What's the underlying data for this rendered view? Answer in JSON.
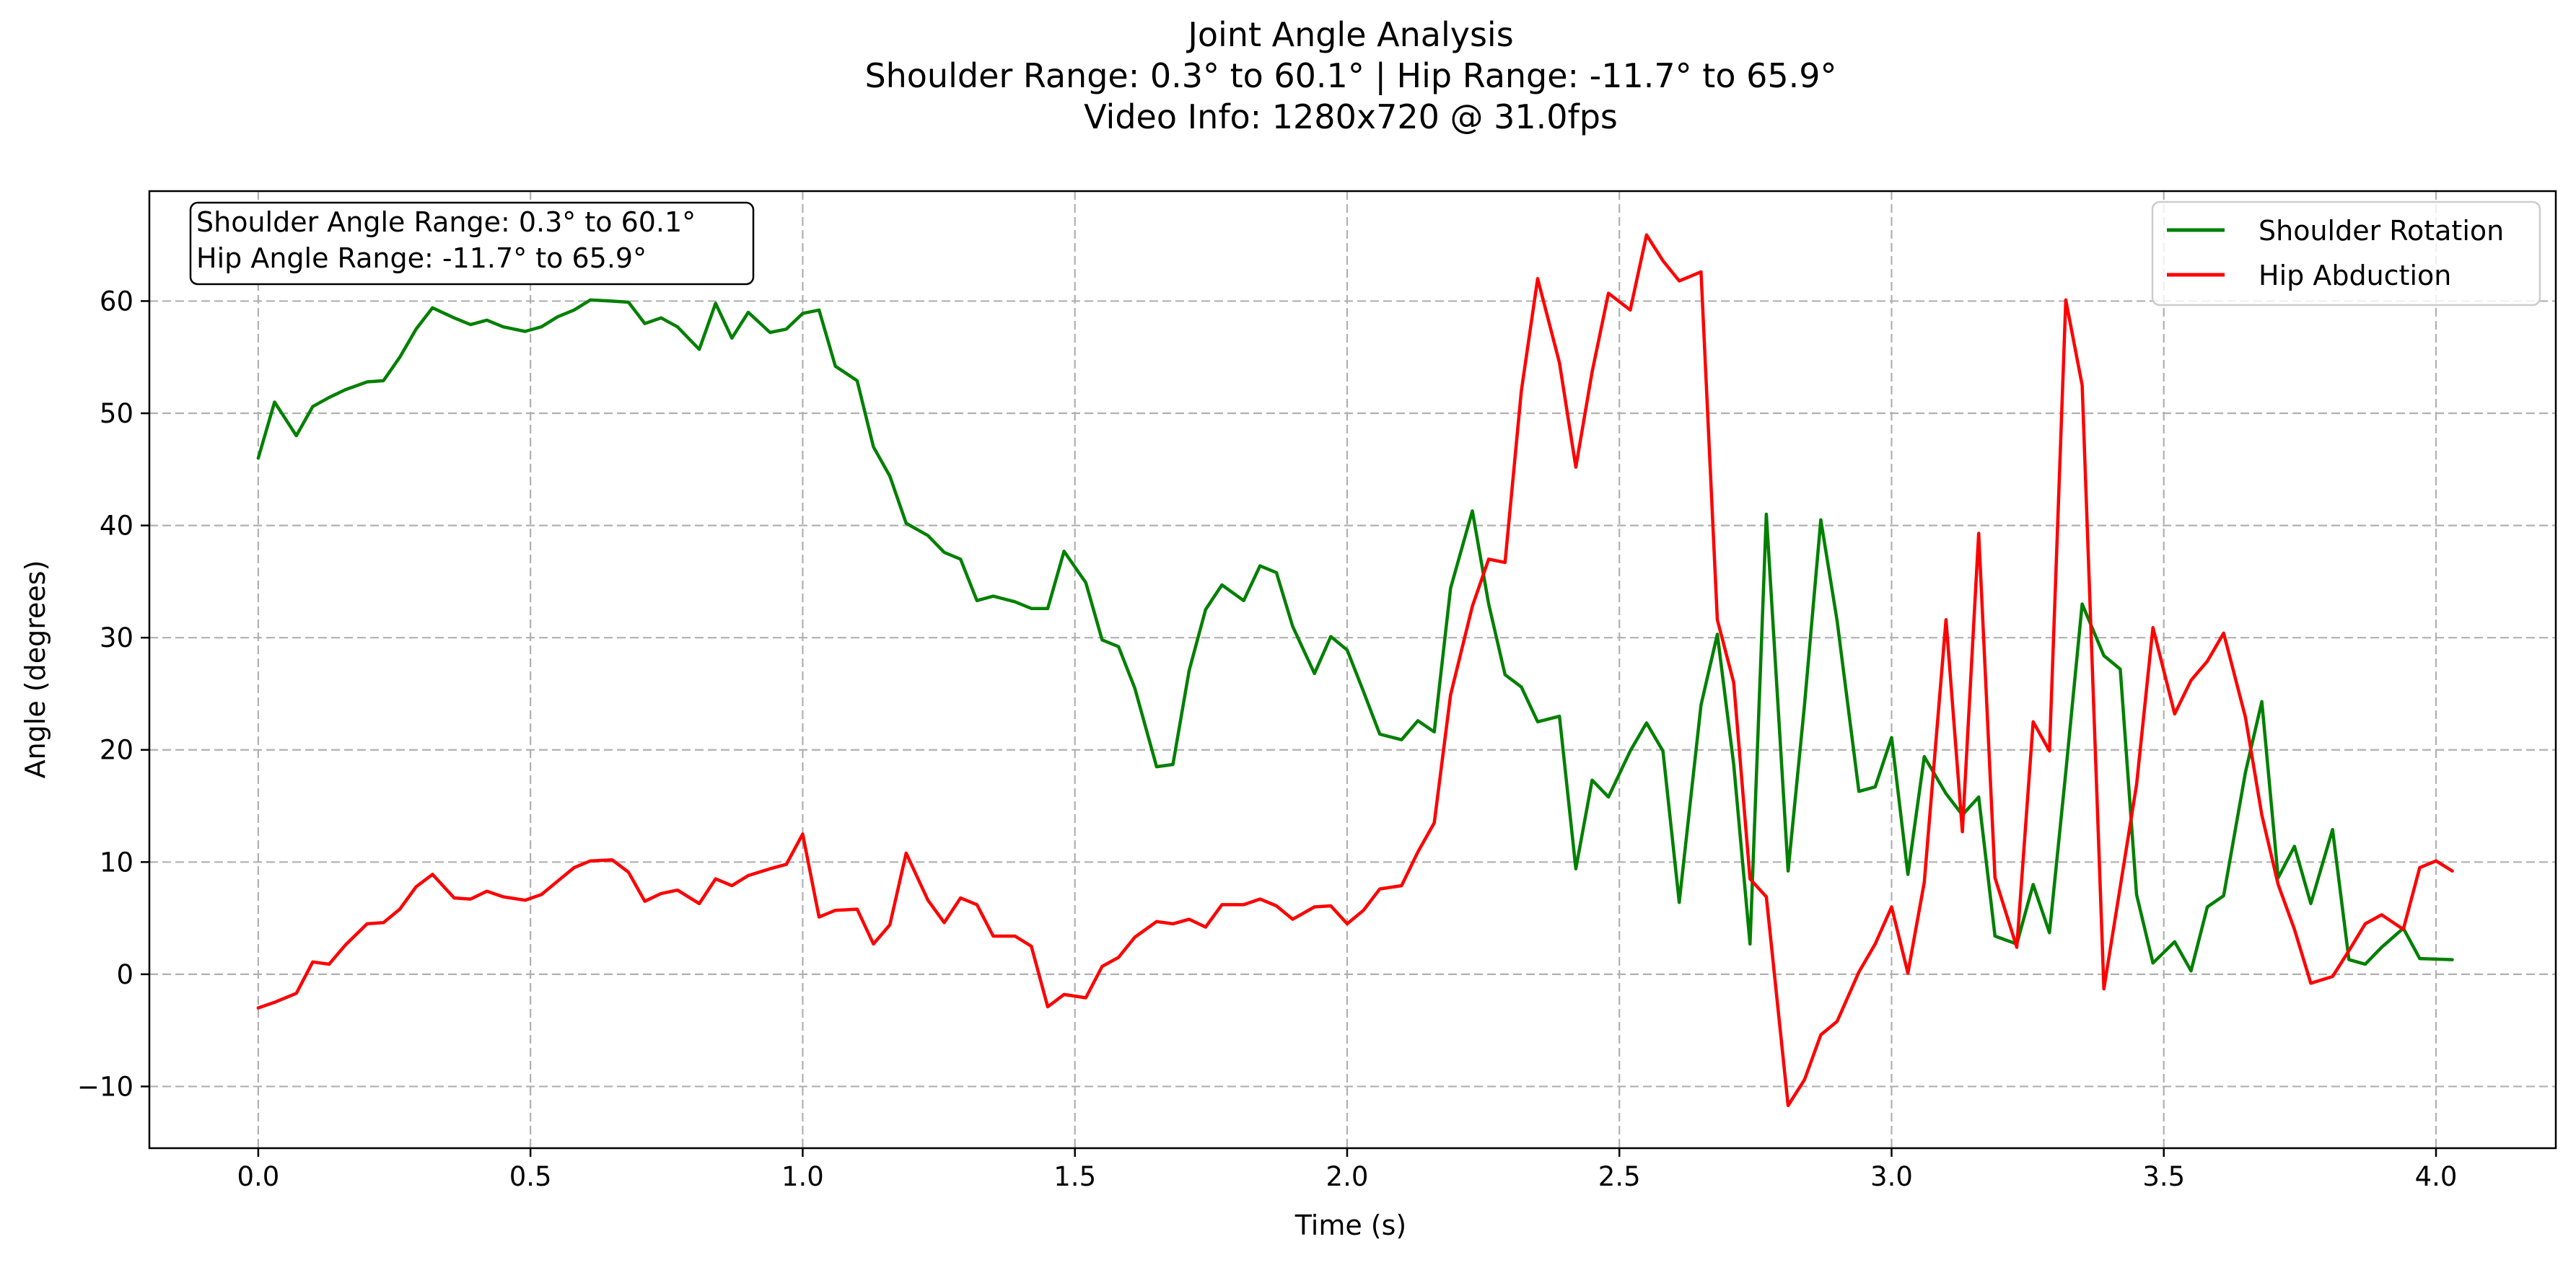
{
  "chart_data": {
    "type": "line",
    "title_lines": [
      "Joint Angle Analysis",
      "Shoulder Range: 0.3° to 60.1° | Hip Range: -11.7° to 65.9°",
      "Video Info: 1280x720 @ 31.0fps"
    ],
    "xlabel": "Time (s)",
    "ylabel": "Angle (degrees)",
    "xlim": [
      -0.2,
      4.22
    ],
    "ylim": [
      -15.5,
      69.8
    ],
    "xticks": [
      0.0,
      0.5,
      1.0,
      1.5,
      2.0,
      2.5,
      3.0,
      3.5,
      4.0
    ],
    "xtick_labels": [
      "0.0",
      "0.5",
      "1.0",
      "1.5",
      "2.0",
      "2.5",
      "3.0",
      "3.5",
      "4.0"
    ],
    "yticks": [
      -10,
      0,
      10,
      20,
      30,
      40,
      50,
      60
    ],
    "ytick_labels": [
      "−10",
      "0",
      "10",
      "20",
      "30",
      "40",
      "50",
      "60"
    ],
    "grid": true,
    "legend_position": "top-right",
    "annotation_lines": [
      "Shoulder Angle Range: 0.3° to 60.1°",
      "Hip Angle Range: -11.7° to 65.9°"
    ],
    "series": [
      {
        "name": "Shoulder Rotation",
        "color": "#008000",
        "points": [
          [
            0.0,
            46.0
          ],
          [
            0.03,
            51.0
          ],
          [
            0.07,
            48.0
          ],
          [
            0.1,
            50.6
          ],
          [
            0.13,
            51.4
          ],
          [
            0.16,
            52.1
          ],
          [
            0.2,
            52.8
          ],
          [
            0.23,
            52.9
          ],
          [
            0.26,
            55.0
          ],
          [
            0.29,
            57.5
          ],
          [
            0.32,
            59.4
          ],
          [
            0.36,
            58.5
          ],
          [
            0.39,
            57.9
          ],
          [
            0.42,
            58.3
          ],
          [
            0.45,
            57.7
          ],
          [
            0.49,
            57.3
          ],
          [
            0.52,
            57.7
          ],
          [
            0.55,
            58.6
          ],
          [
            0.58,
            59.2
          ],
          [
            0.61,
            60.1
          ],
          [
            0.65,
            60.0
          ],
          [
            0.68,
            59.9
          ],
          [
            0.71,
            58.0
          ],
          [
            0.74,
            58.5
          ],
          [
            0.77,
            57.7
          ],
          [
            0.81,
            55.7
          ],
          [
            0.84,
            59.8
          ],
          [
            0.87,
            56.7
          ],
          [
            0.9,
            59.0
          ],
          [
            0.94,
            57.2
          ],
          [
            0.97,
            57.5
          ],
          [
            1.0,
            58.9
          ],
          [
            1.03,
            59.2
          ],
          [
            1.06,
            54.2
          ],
          [
            1.1,
            52.9
          ],
          [
            1.13,
            47.0
          ],
          [
            1.16,
            44.4
          ],
          [
            1.19,
            40.2
          ],
          [
            1.23,
            39.1
          ],
          [
            1.26,
            37.6
          ],
          [
            1.29,
            37.0
          ],
          [
            1.32,
            33.3
          ],
          [
            1.35,
            33.7
          ],
          [
            1.39,
            33.2
          ],
          [
            1.42,
            32.6
          ],
          [
            1.45,
            32.6
          ],
          [
            1.48,
            37.7
          ],
          [
            1.52,
            34.9
          ],
          [
            1.55,
            29.8
          ],
          [
            1.58,
            29.2
          ],
          [
            1.61,
            25.5
          ],
          [
            1.65,
            18.5
          ],
          [
            1.68,
            18.7
          ],
          [
            1.71,
            27.1
          ],
          [
            1.74,
            32.5
          ],
          [
            1.77,
            34.7
          ],
          [
            1.81,
            33.3
          ],
          [
            1.84,
            36.4
          ],
          [
            1.87,
            35.8
          ],
          [
            1.9,
            31.0
          ],
          [
            1.94,
            26.8
          ],
          [
            1.97,
            30.1
          ],
          [
            2.0,
            28.9
          ],
          [
            2.03,
            25.2
          ],
          [
            2.06,
            21.4
          ],
          [
            2.1,
            20.9
          ],
          [
            2.13,
            22.6
          ],
          [
            2.16,
            21.6
          ],
          [
            2.19,
            34.4
          ],
          [
            2.23,
            41.3
          ],
          [
            2.26,
            33.0
          ],
          [
            2.29,
            26.7
          ],
          [
            2.32,
            25.6
          ],
          [
            2.35,
            22.5
          ],
          [
            2.39,
            23.0
          ],
          [
            2.42,
            9.4
          ],
          [
            2.45,
            17.3
          ],
          [
            2.48,
            15.8
          ],
          [
            2.52,
            19.9
          ],
          [
            2.55,
            22.4
          ],
          [
            2.58,
            19.9
          ],
          [
            2.61,
            6.4
          ],
          [
            2.65,
            24.0
          ],
          [
            2.68,
            30.3
          ],
          [
            2.71,
            18.7
          ],
          [
            2.74,
            2.7
          ],
          [
            2.77,
            41.0
          ],
          [
            2.81,
            9.2
          ],
          [
            2.84,
            24.0
          ],
          [
            2.87,
            40.5
          ],
          [
            2.9,
            31.5
          ],
          [
            2.94,
            16.3
          ],
          [
            2.97,
            16.7
          ],
          [
            3.0,
            21.1
          ],
          [
            3.03,
            8.9
          ],
          [
            3.06,
            19.4
          ],
          [
            3.1,
            16.1
          ],
          [
            3.13,
            14.2
          ],
          [
            3.16,
            15.8
          ],
          [
            3.19,
            3.4
          ],
          [
            3.23,
            2.7
          ],
          [
            3.26,
            8.0
          ],
          [
            3.29,
            3.7
          ],
          [
            3.32,
            18.0
          ],
          [
            3.35,
            33.0
          ],
          [
            3.39,
            28.4
          ],
          [
            3.42,
            27.2
          ],
          [
            3.45,
            7.1
          ],
          [
            3.48,
            1.0
          ],
          [
            3.52,
            2.9
          ],
          [
            3.55,
            0.3
          ],
          [
            3.58,
            6.0
          ],
          [
            3.61,
            7.0
          ],
          [
            3.65,
            18.0
          ],
          [
            3.68,
            24.3
          ],
          [
            3.71,
            8.6
          ],
          [
            3.74,
            11.4
          ],
          [
            3.77,
            6.3
          ],
          [
            3.81,
            12.9
          ],
          [
            3.84,
            1.3
          ],
          [
            3.87,
            0.9
          ],
          [
            3.9,
            2.4
          ],
          [
            3.94,
            4.1
          ],
          [
            3.97,
            1.4
          ],
          [
            4.03,
            1.3
          ]
        ]
      },
      {
        "name": "Hip Abduction",
        "color": "#ff0000",
        "points": [
          [
            0.0,
            -3.0
          ],
          [
            0.03,
            -2.5
          ],
          [
            0.07,
            -1.7
          ],
          [
            0.1,
            1.1
          ],
          [
            0.13,
            0.9
          ],
          [
            0.16,
            2.6
          ],
          [
            0.2,
            4.5
          ],
          [
            0.23,
            4.6
          ],
          [
            0.26,
            5.8
          ],
          [
            0.29,
            7.8
          ],
          [
            0.32,
            8.9
          ],
          [
            0.36,
            6.8
          ],
          [
            0.39,
            6.7
          ],
          [
            0.42,
            7.4
          ],
          [
            0.45,
            6.9
          ],
          [
            0.49,
            6.6
          ],
          [
            0.52,
            7.1
          ],
          [
            0.55,
            8.3
          ],
          [
            0.58,
            9.5
          ],
          [
            0.61,
            10.1
          ],
          [
            0.65,
            10.2
          ],
          [
            0.68,
            9.1
          ],
          [
            0.71,
            6.5
          ],
          [
            0.74,
            7.2
          ],
          [
            0.77,
            7.5
          ],
          [
            0.81,
            6.3
          ],
          [
            0.84,
            8.5
          ],
          [
            0.87,
            7.9
          ],
          [
            0.9,
            8.8
          ],
          [
            0.94,
            9.4
          ],
          [
            0.97,
            9.8
          ],
          [
            1.0,
            12.5
          ],
          [
            1.03,
            5.1
          ],
          [
            1.06,
            5.7
          ],
          [
            1.1,
            5.8
          ],
          [
            1.13,
            2.7
          ],
          [
            1.16,
            4.4
          ],
          [
            1.19,
            10.8
          ],
          [
            1.23,
            6.6
          ],
          [
            1.26,
            4.6
          ],
          [
            1.29,
            6.8
          ],
          [
            1.32,
            6.2
          ],
          [
            1.35,
            3.4
          ],
          [
            1.39,
            3.4
          ],
          [
            1.42,
            2.5
          ],
          [
            1.45,
            -2.9
          ],
          [
            1.48,
            -1.8
          ],
          [
            1.52,
            -2.1
          ],
          [
            1.55,
            0.7
          ],
          [
            1.58,
            1.5
          ],
          [
            1.61,
            3.3
          ],
          [
            1.65,
            4.7
          ],
          [
            1.68,
            4.5
          ],
          [
            1.71,
            4.9
          ],
          [
            1.74,
            4.2
          ],
          [
            1.77,
            6.2
          ],
          [
            1.81,
            6.2
          ],
          [
            1.84,
            6.7
          ],
          [
            1.87,
            6.1
          ],
          [
            1.9,
            4.9
          ],
          [
            1.94,
            6.0
          ],
          [
            1.97,
            6.1
          ],
          [
            2.0,
            4.5
          ],
          [
            2.03,
            5.7
          ],
          [
            2.06,
            7.6
          ],
          [
            2.1,
            7.9
          ],
          [
            2.13,
            10.9
          ],
          [
            2.16,
            13.5
          ],
          [
            2.19,
            24.9
          ],
          [
            2.23,
            32.8
          ],
          [
            2.26,
            37.0
          ],
          [
            2.29,
            36.7
          ],
          [
            2.32,
            52.0
          ],
          [
            2.35,
            62.0
          ],
          [
            2.39,
            54.5
          ],
          [
            2.42,
            45.2
          ],
          [
            2.45,
            53.7
          ],
          [
            2.48,
            60.7
          ],
          [
            2.52,
            59.2
          ],
          [
            2.55,
            65.9
          ],
          [
            2.58,
            63.6
          ],
          [
            2.61,
            61.8
          ],
          [
            2.65,
            62.6
          ],
          [
            2.68,
            31.6
          ],
          [
            2.71,
            26.0
          ],
          [
            2.74,
            8.5
          ],
          [
            2.77,
            6.9
          ],
          [
            2.81,
            -11.7
          ],
          [
            2.84,
            -9.4
          ],
          [
            2.87,
            -5.4
          ],
          [
            2.9,
            -4.2
          ],
          [
            2.94,
            0.2
          ],
          [
            2.97,
            2.7
          ],
          [
            3.0,
            6.0
          ],
          [
            3.03,
            0.1
          ],
          [
            3.06,
            8.2
          ],
          [
            3.1,
            31.6
          ],
          [
            3.13,
            12.7
          ],
          [
            3.16,
            39.3
          ],
          [
            3.19,
            8.6
          ],
          [
            3.23,
            2.4
          ],
          [
            3.26,
            22.5
          ],
          [
            3.29,
            19.9
          ],
          [
            3.32,
            60.1
          ],
          [
            3.35,
            52.5
          ],
          [
            3.39,
            -1.3
          ],
          [
            3.42,
            7.8
          ],
          [
            3.45,
            16.9
          ],
          [
            3.48,
            30.9
          ],
          [
            3.52,
            23.2
          ],
          [
            3.55,
            26.2
          ],
          [
            3.58,
            27.9
          ],
          [
            3.61,
            30.4
          ],
          [
            3.65,
            22.9
          ],
          [
            3.68,
            14.2
          ],
          [
            3.71,
            8.0
          ],
          [
            3.74,
            4.0
          ],
          [
            3.77,
            -0.8
          ],
          [
            3.81,
            -0.2
          ],
          [
            3.84,
            2.1
          ],
          [
            3.87,
            4.5
          ],
          [
            3.9,
            5.3
          ],
          [
            3.94,
            4.0
          ],
          [
            3.97,
            9.5
          ],
          [
            4.0,
            10.1
          ],
          [
            4.03,
            9.2
          ]
        ]
      }
    ]
  }
}
